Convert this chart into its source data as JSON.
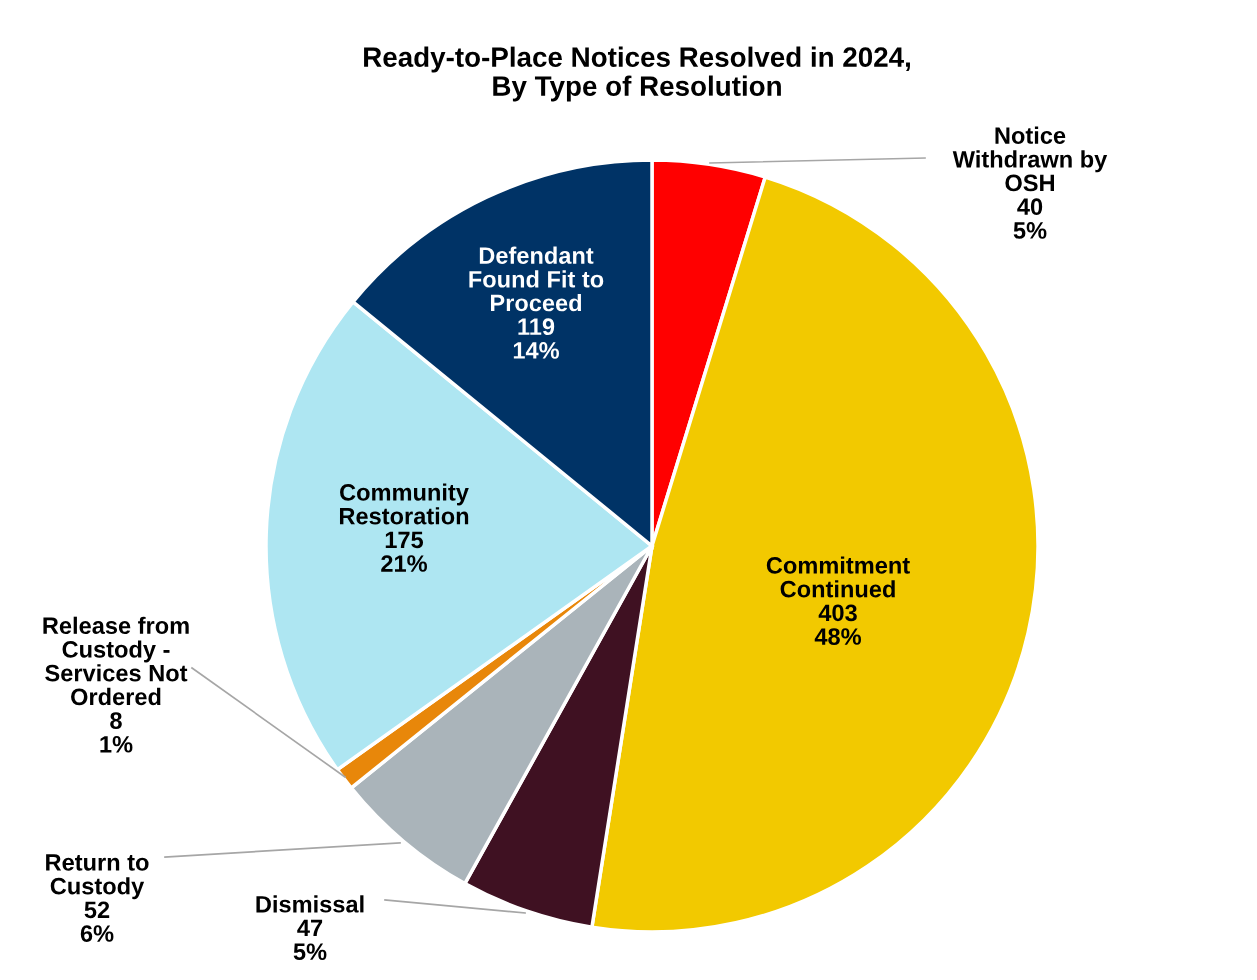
{
  "chart_data": {
    "type": "pie",
    "title": "Ready-to-Place Notices Resolved in 2024,\nBy Type of Resolution",
    "categories": [
      "Notice\nWithdrawn by\nOSH",
      "Commitment\nContinued",
      "Dismissal",
      "Return to\nCustody",
      "Release from\nCustody -\nServices Not\nOrdered",
      "Community\nRestoration",
      "Defendant\nFound Fit to\nProceed"
    ],
    "values": [
      40,
      403,
      47,
      52,
      8,
      175,
      119
    ],
    "value_labels": [
      "40\n5%",
      "403\n48%",
      "47\n5%",
      "52\n6%",
      "8\n1%",
      "175\n21%",
      "119\n14%"
    ],
    "colors": [
      "#ff0000",
      "#f2c900",
      "#3f1122",
      "#aab4ba",
      "#e8870a",
      "#aee6f2",
      "#003366"
    ],
    "legend": false
  }
}
